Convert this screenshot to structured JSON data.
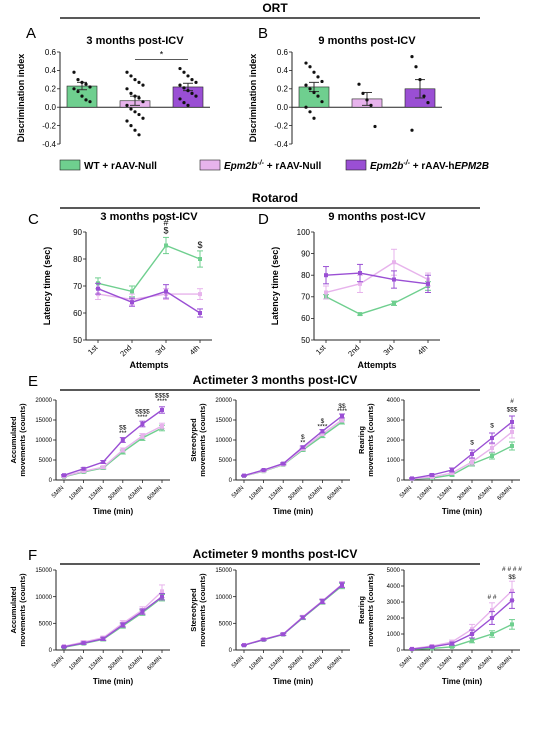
{
  "colors": {
    "wt": "#6fcf8f",
    "null": "#e7b3ec",
    "hepm": "#9a4fd4",
    "axis": "#222222",
    "error": "#333333"
  },
  "sections": {
    "ort": "ORT",
    "rotarod": "Rotarod",
    "act3": "Actimeter 3 months post-ICV",
    "act9": "Actimeter 9 months post-ICV"
  },
  "panel_letters": {
    "A": "A",
    "B": "B",
    "C": "C",
    "D": "D",
    "E": "E",
    "F": "F"
  },
  "legend": {
    "wt": "WT + rAAV-Null",
    "null_pre": "Epm2b",
    "null_sup": "-/-",
    "null_post": " + rAAV-Null",
    "hepm_pre": "Epm2b",
    "hepm_sup": "-/-",
    "hepm_post": " + rAAV-h",
    "hepm_italic": "EPM2B"
  },
  "chart_data": [
    {
      "id": "A",
      "type": "bar",
      "title": "3 months post-ICV",
      "ylabel": "Discrimination index",
      "xlabel": "",
      "ylim": [
        -0.4,
        0.6
      ],
      "yticks": [
        "-0.4",
        "-0.2",
        "0.0",
        "0.2",
        "0.4",
        "0.6"
      ],
      "categories": [
        "WT + rAAV-Null",
        "Epm2b-/- + rAAV-Null",
        "Epm2b-/- + rAAV-hEPM2B"
      ],
      "values": [
        0.23,
        0.07,
        0.22
      ],
      "sem": [
        0.04,
        0.05,
        0.04
      ],
      "points": [
        [
          0.38,
          0.3,
          0.27,
          0.25,
          0.22,
          0.2,
          0.17,
          0.12,
          0.08,
          0.06
        ],
        [
          0.38,
          0.34,
          0.3,
          0.27,
          0.24,
          0.2,
          0.15,
          0.12,
          0.1,
          0.06,
          0.02,
          -0.02,
          -0.05,
          -0.08,
          -0.12,
          -0.15,
          -0.2,
          -0.25,
          -0.3
        ],
        [
          0.42,
          0.38,
          0.34,
          0.3,
          0.27,
          0.24,
          0.21,
          0.18,
          0.15,
          0.12,
          0.09,
          0.05,
          0.02
        ]
      ],
      "annotation": {
        "text": "*",
        "from": 1,
        "to": 2,
        "y": 0.52
      }
    },
    {
      "id": "B",
      "type": "bar",
      "title": "9 months post-ICV",
      "ylabel": "Discrimination index",
      "xlabel": "",
      "ylim": [
        -0.4,
        0.6
      ],
      "yticks": [
        "-0.4",
        "-0.2",
        "0.0",
        "0.2",
        "0.4",
        "0.6"
      ],
      "categories": [
        "WT + rAAV-Null",
        "Epm2b-/- + rAAV-Null",
        "Epm2b-/- + rAAV-hEPM2B"
      ],
      "values": [
        0.22,
        0.09,
        0.2
      ],
      "sem": [
        0.05,
        0.07,
        0.1
      ],
      "points": [
        [
          0.48,
          0.44,
          0.38,
          0.33,
          0.28,
          0.24,
          0.2,
          0.16,
          0.12,
          0.06,
          0.0,
          -0.05,
          -0.12
        ],
        [
          0.25,
          0.15,
          0.08,
          0.02,
          -0.21
        ],
        [
          0.55,
          0.44,
          0.3,
          0.12,
          0.05,
          -0.25
        ]
      ]
    },
    {
      "id": "C",
      "type": "line",
      "title": "3 months post-ICV",
      "ylabel": "Latency time (sec)",
      "xlabel": "Attempts",
      "ylim": [
        50,
        90
      ],
      "yticks": [
        "50",
        "60",
        "70",
        "80",
        "90"
      ],
      "categories": [
        "1st",
        "2nd",
        "3rd",
        "4th"
      ],
      "series": [
        {
          "key": "wt",
          "values": [
            71,
            68,
            85,
            80
          ],
          "sem": [
            2,
            2,
            3,
            3
          ]
        },
        {
          "key": "null",
          "values": [
            67,
            65,
            67,
            67
          ],
          "sem": [
            2,
            2,
            2,
            2
          ]
        },
        {
          "key": "hepm",
          "values": [
            69,
            64,
            68,
            60
          ],
          "sem": [
            2,
            1.5,
            2.5,
            1.5
          ]
        }
      ],
      "annotations": [
        {
          "text": "#",
          "x": 2,
          "y": 92.5
        },
        {
          "text": "$",
          "x": 2,
          "y": 89.5
        },
        {
          "text": "$",
          "x": 3,
          "y": 84
        }
      ]
    },
    {
      "id": "D",
      "type": "line",
      "title": "9 months post-ICV",
      "ylabel": "Latency time (sec)",
      "xlabel": "Attempts",
      "ylim": [
        50,
        100
      ],
      "yticks": [
        "50",
        "60",
        "70",
        "80",
        "90",
        "100"
      ],
      "categories": [
        "1st",
        "2nd",
        "3rd",
        "4th"
      ],
      "series": [
        {
          "key": "wt",
          "values": [
            70,
            62,
            67,
            75
          ],
          "sem": [
            1,
            0.5,
            1,
            2
          ]
        },
        {
          "key": "null",
          "values": [
            72,
            76,
            86,
            78
          ],
          "sem": [
            3,
            4,
            6,
            3
          ]
        },
        {
          "key": "hepm",
          "values": [
            80,
            81,
            78,
            76
          ],
          "sem": [
            4,
            4,
            4,
            4
          ]
        }
      ]
    },
    {
      "id": "E1",
      "type": "line",
      "title": "",
      "ylabel": "Accumulated movements (counts)",
      "xlabel": "Time (min)",
      "ylim": [
        0,
        20000
      ],
      "yticks": [
        "0",
        "5000",
        "10000",
        "15000",
        "20000"
      ],
      "categories": [
        "5MIN",
        "10MIN",
        "15MIN",
        "30MIN",
        "45MIN",
        "60MIN"
      ],
      "series": [
        {
          "key": "wt",
          "values": [
            800,
            2000,
            3000,
            7000,
            10500,
            13000
          ],
          "sem": [
            100,
            200,
            300,
            500,
            600,
            700
          ]
        },
        {
          "key": "null",
          "values": [
            900,
            2200,
            3200,
            7500,
            11000,
            13500
          ],
          "sem": [
            100,
            200,
            300,
            500,
            600,
            700
          ]
        },
        {
          "key": "hepm",
          "values": [
            1200,
            2800,
            4500,
            10000,
            14000,
            17500
          ],
          "sem": [
            150,
            250,
            350,
            600,
            700,
            800
          ]
        }
      ],
      "annotations": [
        {
          "text": "$$",
          "x": 3,
          "y": 12600
        },
        {
          "text": "***",
          "x": 3,
          "y": 11200
        },
        {
          "text": "$$$$",
          "x": 4,
          "y": 16600
        },
        {
          "text": "****",
          "x": 4,
          "y": 15200
        },
        {
          "text": "$$$$",
          "x": 5,
          "y": 20600
        },
        {
          "text": "****",
          "x": 5,
          "y": 19200
        }
      ]
    },
    {
      "id": "E2",
      "type": "line",
      "title": "",
      "ylabel": "Stereotyped movements (counts)",
      "xlabel": "Time (min)",
      "ylim": [
        0,
        20000
      ],
      "yticks": [
        "0",
        "5000",
        "10000",
        "15000",
        "20000"
      ],
      "categories": [
        "5MIN",
        "10MIN",
        "15MIN",
        "30MIN",
        "45MIN",
        "60MIN"
      ],
      "series": [
        {
          "key": "wt",
          "values": [
            1000,
            2200,
            3800,
            7500,
            11000,
            14500
          ],
          "sem": [
            100,
            150,
            200,
            300,
            400,
            500
          ]
        },
        {
          "key": "null",
          "values": [
            1050,
            2300,
            3900,
            7800,
            11500,
            15000
          ],
          "sem": [
            100,
            150,
            200,
            300,
            400,
            500
          ]
        },
        {
          "key": "hepm",
          "values": [
            1100,
            2500,
            4100,
            8200,
            12200,
            16000
          ],
          "sem": [
            100,
            150,
            200,
            300,
            400,
            500
          ]
        }
      ],
      "annotations": [
        {
          "text": "$",
          "x": 3,
          "y": 10200
        },
        {
          "text": "**",
          "x": 3,
          "y": 8900
        },
        {
          "text": "$",
          "x": 4,
          "y": 14200
        },
        {
          "text": "****",
          "x": 4,
          "y": 12900
        },
        {
          "text": "$$",
          "x": 5,
          "y": 18000
        },
        {
          "text": "****",
          "x": 5,
          "y": 16700
        }
      ]
    },
    {
      "id": "E3",
      "type": "line",
      "title": "",
      "ylabel": "Rearing movements (counts)",
      "xlabel": "Time (min)",
      "ylim": [
        0,
        4000
      ],
      "yticks": [
        "0",
        "1000",
        "2000",
        "3000",
        "4000"
      ],
      "categories": [
        "5MIN",
        "10MIN",
        "15MIN",
        "30MIN",
        "45MIN",
        "60MIN"
      ],
      "series": [
        {
          "key": "wt",
          "values": [
            50,
            100,
            250,
            800,
            1200,
            1700
          ],
          "sem": [
            20,
            30,
            50,
            100,
            150,
            200
          ]
        },
        {
          "key": "null",
          "values": [
            60,
            150,
            350,
            900,
            1600,
            2400
          ],
          "sem": [
            20,
            30,
            50,
            150,
            200,
            300
          ]
        },
        {
          "key": "hepm",
          "values": [
            80,
            250,
            500,
            1300,
            2100,
            2900
          ],
          "sem": [
            30,
            50,
            100,
            200,
            250,
            300
          ]
        }
      ],
      "annotations": [
        {
          "text": "$",
          "x": 3,
          "y": 1780
        },
        {
          "text": "$",
          "x": 4,
          "y": 2620
        },
        {
          "text": "#",
          "x": 5,
          "y": 3860
        },
        {
          "text": "$$$",
          "x": 5,
          "y": 3420
        }
      ]
    },
    {
      "id": "F1",
      "type": "line",
      "title": "",
      "ylabel": "Accumulated movements (counts)",
      "xlabel": "Time (min)",
      "ylim": [
        0,
        15000
      ],
      "yticks": [
        "0",
        "5000",
        "10000",
        "15000"
      ],
      "categories": [
        "5MIN",
        "10MIN",
        "15MIN",
        "30MIN",
        "45MIN",
        "60MIN"
      ],
      "series": [
        {
          "key": "wt",
          "values": [
            500,
            1200,
            2000,
            4500,
            7000,
            9800
          ],
          "sem": [
            100,
            200,
            300,
            400,
            500,
            600
          ]
        },
        {
          "key": "null",
          "values": [
            700,
            1500,
            2300,
            5000,
            7500,
            11000
          ],
          "sem": [
            150,
            250,
            300,
            500,
            600,
            1200
          ]
        },
        {
          "key": "hepm",
          "values": [
            600,
            1300,
            2100,
            4700,
            7200,
            10000
          ],
          "sem": [
            100,
            200,
            300,
            400,
            500,
            600
          ]
        }
      ]
    },
    {
      "id": "F2",
      "type": "line",
      "title": "",
      "ylabel": "Stereotyped movements (counts)",
      "xlabel": "Time (min)",
      "ylim": [
        0,
        15000
      ],
      "yticks": [
        "0",
        "5000",
        "10000",
        "15000"
      ],
      "categories": [
        "5MIN",
        "10MIN",
        "15MIN",
        "30MIN",
        "45MIN",
        "60MIN"
      ],
      "series": [
        {
          "key": "wt",
          "values": [
            900,
            1900,
            2900,
            6000,
            9000,
            12000
          ],
          "sem": [
            100,
            150,
            200,
            300,
            400,
            500
          ]
        },
        {
          "key": "null",
          "values": [
            950,
            2000,
            3000,
            6200,
            9200,
            12300
          ],
          "sem": [
            100,
            150,
            200,
            300,
            400,
            500
          ]
        },
        {
          "key": "hepm",
          "values": [
            900,
            1950,
            2950,
            6100,
            9100,
            12200
          ],
          "sem": [
            100,
            150,
            200,
            300,
            400,
            500
          ]
        }
      ]
    },
    {
      "id": "F3",
      "type": "line",
      "title": "",
      "ylabel": "Rearing movements (counts)",
      "xlabel": "Time (min)",
      "ylim": [
        0,
        5000
      ],
      "yticks": [
        "0",
        "1000",
        "2000",
        "3000",
        "4000",
        "5000"
      ],
      "categories": [
        "5MIN",
        "10MIN",
        "15MIN",
        "30MIN",
        "45MIN",
        "60MIN"
      ],
      "series": [
        {
          "key": "wt",
          "values": [
            50,
            100,
            200,
            600,
            1000,
            1600
          ],
          "sem": [
            20,
            30,
            50,
            150,
            200,
            300
          ]
        },
        {
          "key": "null",
          "values": [
            80,
            250,
            500,
            1300,
            2500,
            3700
          ],
          "sem": [
            30,
            60,
            120,
            300,
            450,
            600
          ]
        },
        {
          "key": "hepm",
          "values": [
            60,
            200,
            400,
            1000,
            2000,
            3100
          ],
          "sem": [
            20,
            50,
            100,
            250,
            400,
            500
          ]
        }
      ],
      "annotations": [
        {
          "text": "# #",
          "x": 4,
          "y": 3200
        },
        {
          "text": "# # # #",
          "x": 5,
          "y": 4950
        },
        {
          "text": "$$",
          "x": 5,
          "y": 4450
        }
      ]
    }
  ]
}
